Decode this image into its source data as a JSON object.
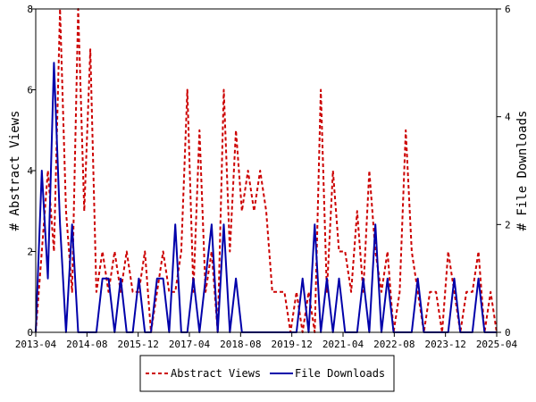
{
  "chart_data": {
    "type": "line",
    "x_ticks": [
      "2013-04",
      "2014-08",
      "2015-12",
      "2017-04",
      "2018-08",
      "2019-12",
      "2021-04",
      "2022-08",
      "2023-12",
      "2025-04"
    ],
    "ylabel_left": "# Abstract Views",
    "ylabel_right": "# File Downloads",
    "ylim_left": [
      0,
      8
    ],
    "ylim_right": [
      0,
      6
    ],
    "yticks_left": [
      "0",
      "2",
      "4",
      "6",
      "8"
    ],
    "yticks_right": [
      "0",
      "2",
      "4",
      "6"
    ],
    "grid": false,
    "legend_position": "bottom",
    "series": [
      {
        "name": "Abstract Views",
        "axis": "left",
        "color": "#cc0000",
        "style": "dashed",
        "x": [
          0,
          2,
          4,
          6,
          8,
          10,
          12,
          14,
          16,
          18,
          19,
          20,
          22,
          24,
          26,
          28,
          30,
          32,
          34,
          36,
          38,
          40,
          42,
          44,
          46,
          48,
          50,
          52,
          54,
          56,
          58,
          60,
          62,
          64,
          66,
          68,
          70,
          72,
          74,
          76,
          78,
          80,
          82,
          84,
          86,
          88,
          90,
          92,
          94,
          96,
          98,
          100,
          102,
          104,
          106,
          108,
          110,
          112,
          114,
          116,
          118,
          120,
          122,
          124,
          126,
          128,
          130,
          132,
          134,
          136,
          138,
          140,
          142,
          144,
          146,
          148,
          150,
          152
        ],
        "values": [
          0,
          2,
          4,
          2,
          8,
          3,
          1,
          8,
          3,
          7,
          4,
          1,
          2,
          1,
          2,
          1,
          2,
          1,
          1,
          2,
          0,
          1,
          2,
          1,
          1,
          2,
          6,
          1,
          5,
          1,
          2,
          0,
          6,
          2,
          5,
          3,
          4,
          3,
          4,
          3,
          1,
          1,
          1,
          0,
          1,
          0,
          1,
          0,
          6,
          1,
          4,
          2,
          2,
          1,
          3,
          1,
          4,
          2,
          1,
          2,
          0,
          1,
          5,
          2,
          1,
          0,
          1,
          1,
          0,
          2,
          1,
          0,
          1,
          1,
          2,
          0,
          1,
          0
        ],
        "values_note": ""
      },
      {
        "name": "File Downloads",
        "axis": "right",
        "color": "#0000aa",
        "style": "solid",
        "x": [
          0,
          2,
          4,
          6,
          8,
          10,
          12,
          14,
          16,
          18,
          20,
          22,
          24,
          26,
          28,
          30,
          32,
          34,
          36,
          38,
          40,
          42,
          44,
          46,
          48,
          50,
          52,
          54,
          56,
          58,
          60,
          62,
          64,
          66,
          68,
          70,
          72,
          74,
          76,
          78,
          80,
          82,
          84,
          86,
          88,
          90,
          92,
          94,
          96,
          98,
          100,
          102,
          104,
          106,
          108,
          110,
          112,
          114,
          116,
          118,
          120,
          122,
          124,
          126,
          128,
          130,
          132,
          134,
          136,
          138,
          140,
          142,
          144,
          146,
          148,
          150,
          152
        ],
        "values": [
          0,
          3,
          1,
          5,
          2,
          0,
          2,
          0,
          0,
          0,
          0,
          1,
          1,
          0,
          1,
          0,
          0,
          1,
          0,
          0,
          1,
          1,
          0,
          2,
          0,
          0,
          1,
          0,
          1,
          2,
          0,
          2,
          0,
          1,
          0,
          0,
          0,
          0,
          0,
          0,
          0,
          0,
          0,
          0,
          1,
          0,
          2,
          0,
          1,
          0,
          1,
          0,
          0,
          0,
          1,
          0,
          2,
          0,
          1,
          0,
          0,
          0,
          0,
          1,
          0,
          0,
          0,
          0,
          0,
          1,
          0,
          0,
          0,
          1,
          0,
          0,
          0
        ]
      }
    ]
  }
}
